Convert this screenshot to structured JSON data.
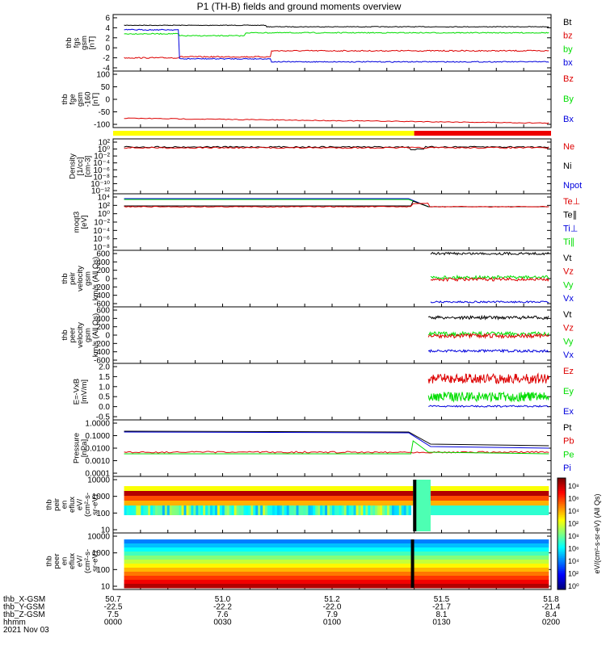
{
  "title": "P1 (TH-B) fields and ground moments overview",
  "colors": {
    "black": "#000000",
    "red": "#dd0000",
    "green": "#00dd00",
    "blue": "#0000dd",
    "yellow": "#ffff00",
    "barred": "#ee0000"
  },
  "panels": [
    {
      "id": "fgs",
      "ylabels": [
        "thb",
        "fgs",
        "gsm",
        "[nT]"
      ],
      "ticks": [
        "6",
        "4",
        "2",
        "0",
        "-2",
        "-4"
      ],
      "legend": [
        {
          "t": "Bt",
          "c": "black"
        },
        {
          "t": "bz",
          "c": "red"
        },
        {
          "t": "by",
          "c": "green"
        },
        {
          "t": "bx",
          "c": "blue"
        }
      ]
    },
    {
      "id": "fge",
      "ylabels": [
        "thb",
        "fge",
        "gsm",
        "-160",
        "[nT]"
      ],
      "ticks": [
        "100",
        "50",
        "0",
        "-50",
        "-100"
      ],
      "legend": [
        {
          "t": "Bz",
          "c": "red"
        },
        {
          "t": "By",
          "c": "green"
        },
        {
          "t": "Bx",
          "c": "blue"
        }
      ]
    },
    {
      "id": "density",
      "ylabels": [
        "Density",
        "[1/cc]",
        "[cm-3]"
      ],
      "ticks": [
        "10²",
        "10⁰",
        "10⁻²",
        "10⁻⁴",
        "10⁻⁶",
        "10⁻⁸",
        "10⁻¹⁰",
        "10⁻¹²"
      ],
      "legend": [
        {
          "t": "Ne",
          "c": "red"
        },
        {
          "t": "Ni",
          "c": "black"
        },
        {
          "t": "Npot",
          "c": "blue"
        }
      ]
    },
    {
      "id": "temp",
      "ylabels": [
        "moqt3",
        "[eV]"
      ],
      "ticks": [
        "10⁴",
        "10²",
        "10⁰",
        "10⁻²",
        "10⁻⁴",
        "10⁻⁶",
        "10⁻⁸"
      ],
      "legend": [
        {
          "t": "Te⊥",
          "c": "red"
        },
        {
          "t": "Te∥",
          "c": "black"
        },
        {
          "t": "Ti⊥",
          "c": "blue"
        },
        {
          "t": "Ti∥",
          "c": "green"
        }
      ]
    },
    {
      "id": "peirv",
      "ylabels": [
        "thb",
        "peir",
        "velocity",
        "gsm",
        "km/s (All Qs)"
      ],
      "ticks": [
        "600",
        "400",
        "200",
        "0",
        "-200",
        "-400",
        "-600"
      ],
      "legend": [
        {
          "t": "Vt",
          "c": "black"
        },
        {
          "t": "Vz",
          "c": "red"
        },
        {
          "t": "Vy",
          "c": "green"
        },
        {
          "t": "Vx",
          "c": "blue"
        }
      ]
    },
    {
      "id": "peerv",
      "ylabels": [
        "thb",
        "peer",
        "velocity",
        "gsm",
        "km/s (All Qs)"
      ],
      "ticks": [
        "600",
        "400",
        "200",
        "0",
        "-200",
        "-400",
        "-600"
      ],
      "legend": [
        {
          "t": "Vt",
          "c": "black"
        },
        {
          "t": "Vz",
          "c": "red"
        },
        {
          "t": "Vy",
          "c": "green"
        },
        {
          "t": "Vx",
          "c": "blue"
        }
      ]
    },
    {
      "id": "efield",
      "ylabels": [
        "E=-VxB",
        "[mV/m]"
      ],
      "ticks": [
        "2.0",
        "1.5",
        "1.0",
        "0.5",
        "0.0",
        "-0.5"
      ],
      "legend": [
        {
          "t": "Ez",
          "c": "red"
        },
        {
          "t": "Ey",
          "c": "green"
        },
        {
          "t": "Ex",
          "c": "blue"
        }
      ]
    },
    {
      "id": "pressure",
      "ylabels": [
        "Pressure",
        "[nPa]"
      ],
      "ticks": [
        "1.0000",
        "0.1000",
        "0.0100",
        "0.0010",
        "0.0001"
      ],
      "legend": [
        {
          "t": "Pt",
          "c": "black"
        },
        {
          "t": "Pb",
          "c": "red"
        },
        {
          "t": "Pe",
          "c": "green"
        },
        {
          "t": "Pi",
          "c": "blue"
        }
      ]
    },
    {
      "id": "peirspec",
      "ylabels": [
        "thb",
        "peir",
        "en",
        "eflux",
        "eV/",
        "(cm²-s-",
        "sr-eV)"
      ],
      "ticks": [
        "10000",
        "1000",
        "100",
        "10"
      ],
      "legend": []
    },
    {
      "id": "peerspec",
      "ylabels": [
        "thb",
        "peer",
        "en",
        "eflux",
        "eV/",
        "(cm²-s-",
        "sr-eV)"
      ],
      "ticks": [
        "10000",
        "1000",
        "100",
        "10"
      ],
      "legend": []
    }
  ],
  "colorbar": {
    "label": "eV/(cm²-s-sr-eV) (All Qs)",
    "ticks": [
      "10⁸",
      "10⁶",
      "10⁴",
      "10²",
      "10⁸",
      "10⁶",
      "10⁴",
      "10²",
      "10⁰"
    ]
  },
  "xaxis": {
    "rows": [
      {
        "label": "thb_X-GSM",
        "vals": [
          "50.7",
          "51.0",
          "51.2",
          "51.5",
          "51.8"
        ]
      },
      {
        "label": "thb_Y-GSM",
        "vals": [
          "-22.5",
          "-22.2",
          "-22.0",
          "-21.7",
          "-21.4"
        ]
      },
      {
        "label": "thb_Z-GSM",
        "vals": [
          "7.5",
          "7.6",
          "7.9",
          "8.1",
          "8.4"
        ]
      },
      {
        "label": "hhmm",
        "vals": [
          "0000",
          "0030",
          "0100",
          "0130",
          "0200"
        ]
      }
    ],
    "date": "2021 Nov 03"
  },
  "chart_data": {
    "type": "line",
    "title": "P1 (TH-B) fields and ground moments overview",
    "x_time_labels": [
      "0000",
      "0030",
      "0100",
      "0130",
      "0200"
    ],
    "x_hours": [
      0,
      0.5,
      1,
      1.5,
      2
    ],
    "series": [
      {
        "panel": "fgs",
        "name": "Bt",
        "approx_level": 4.0
      },
      {
        "panel": "fgs",
        "name": "bz",
        "approx_level": -2.0
      },
      {
        "panel": "fgs",
        "name": "by",
        "approx_level": 2.5
      },
      {
        "panel": "fgs",
        "name": "bx",
        "approx_level": -2.5
      },
      {
        "panel": "fge",
        "name": "Bz",
        "approx_range": [
          -75,
          -95
        ]
      },
      {
        "panel": "density",
        "name": "Ne",
        "approx_level": 1
      },
      {
        "panel": "pressure",
        "name": "Pt",
        "approx_range": [
          0.2,
          0.03
        ]
      },
      {
        "panel": "efield",
        "name": "Ez",
        "approx_level": 1.3
      },
      {
        "panel": "efield",
        "name": "Ey",
        "approx_level": 0.5
      },
      {
        "panel": "efield",
        "name": "Ex",
        "approx_level": 0.0
      }
    ]
  }
}
